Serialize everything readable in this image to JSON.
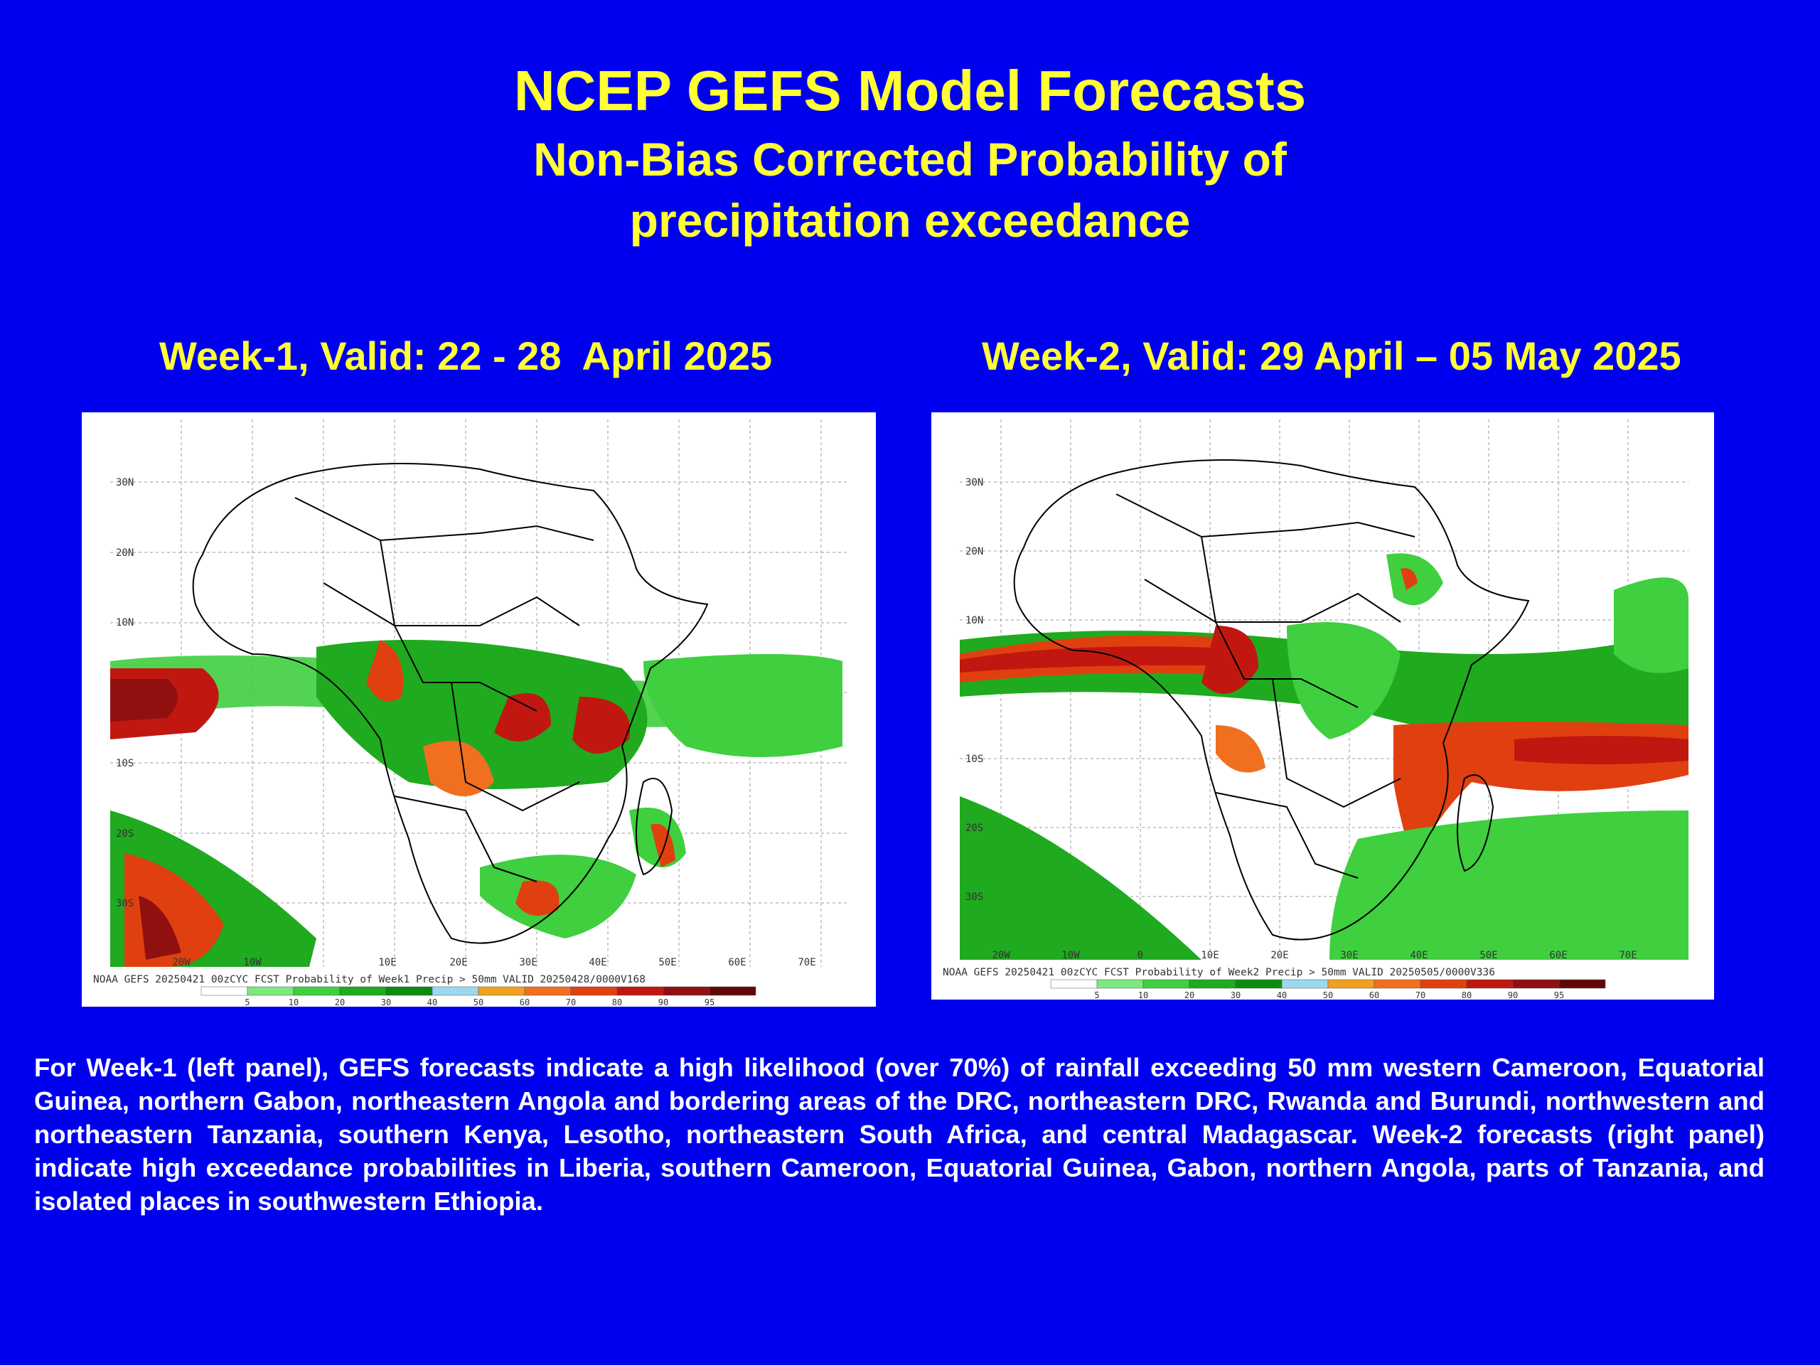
{
  "header": {
    "title": "NCEP GEFS Model Forecasts",
    "subtitle_line1": "Non-Bias Corrected Probability of",
    "subtitle_line2": "precipitation exceedance"
  },
  "panels": [
    {
      "heading": "Week-1, Valid: 22 - 28  April 2025",
      "caption": "NOAA GEFS 20250421 00zCYC FCST Probability of Week1 Precip > 50mm  VALID 20250428/0000V168",
      "lat_labels": [
        "30N",
        "20N",
        "10N",
        "10S",
        "20S",
        "30S"
      ],
      "lon_labels": [
        "20W",
        "10W",
        "10E",
        "20E",
        "30E",
        "40E",
        "50E",
        "60E",
        "70E"
      ]
    },
    {
      "heading": "Week-2, Valid: 29 April – 05 May 2025",
      "caption": "NOAA GEFS 20250421 00zCYC FCST Probability of Week2 Precip > 50mm  VALID 20250505/0000V336",
      "lat_labels": [
        "30N",
        "20N",
        "10N",
        "10S",
        "20S",
        "30S"
      ],
      "lon_labels": [
        "20W",
        "10W",
        "0",
        "10E",
        "20E",
        "30E",
        "40E",
        "50E",
        "60E",
        "70E"
      ]
    }
  ],
  "colorbar": {
    "ticks": [
      "5",
      "10",
      "20",
      "30",
      "40",
      "50",
      "60",
      "70",
      "80",
      "90",
      "95"
    ],
    "colors": [
      "#ffffff",
      "#7ee87e",
      "#3fcf3f",
      "#1faa1f",
      "#0e8a0e",
      "#9ad8f0",
      "#f0a020",
      "#f07020",
      "#e04010",
      "#c01810",
      "#901010",
      "#600808"
    ]
  },
  "description": "For Week-1 (left panel), GEFS forecasts indicate a high likelihood (over 70%) of rainfall exceeding 50 mm western Cameroon, Equatorial Guinea, northern Gabon, northeastern Angola and bordering areas of the DRC, northeastern DRC, Rwanda and Burundi, northwestern and northeastern Tanzania, southern Kenya, Lesotho, northeastern South Africa, and central Madagascar. Week-2 forecasts (right panel) indicate high exceedance probabilities in Liberia, southern Cameroon, Equatorial Guinea, Gabon, northern Angola, parts of Tanzania, and isolated places in southwestern Ethiopia."
}
